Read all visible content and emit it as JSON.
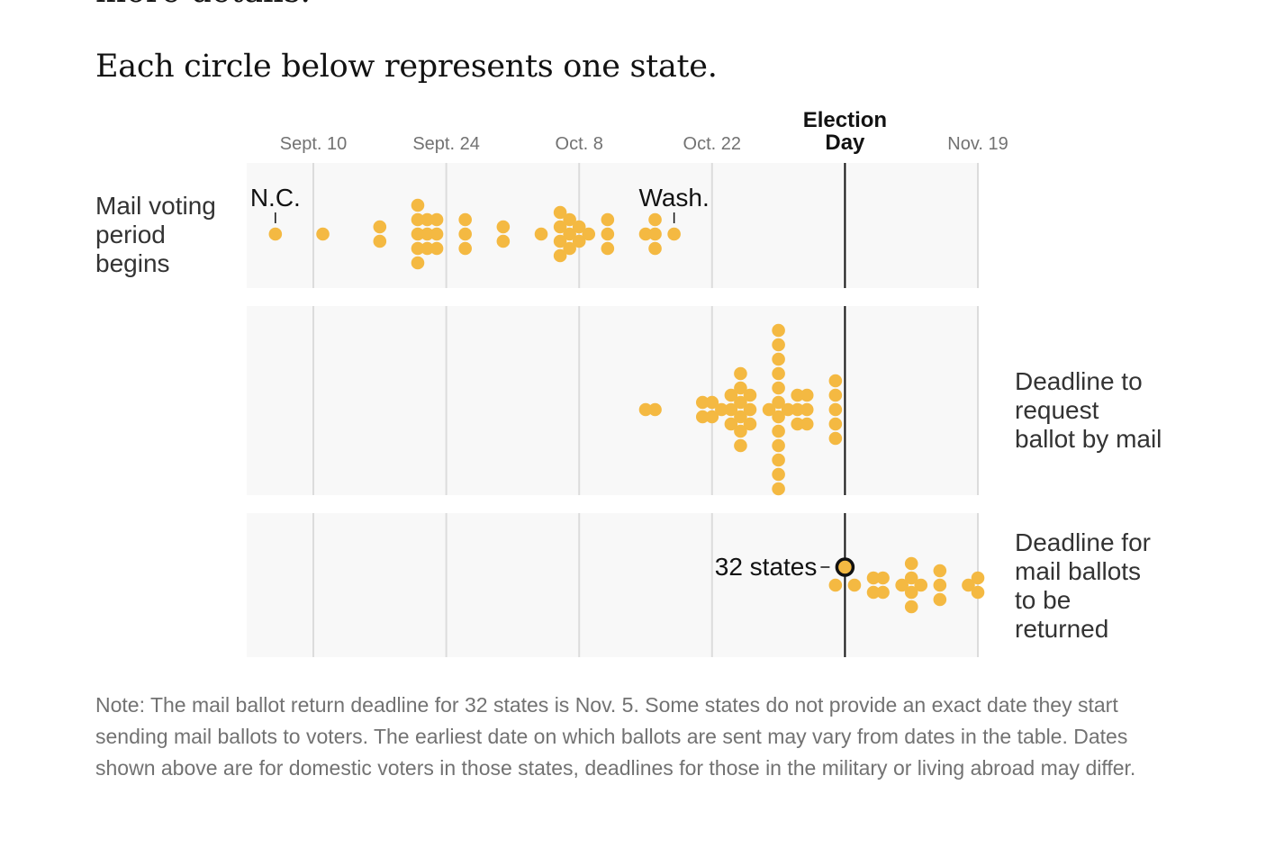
{
  "header": {
    "cut_text": "more details.",
    "intro": "Each circle below represents one state."
  },
  "chart_data": {
    "type": "scatter",
    "subtype": "beeswarm / dot plot",
    "x_axis": {
      "type": "date",
      "ticks": [
        {
          "date": "2024-09-10",
          "label": "Sept. 10"
        },
        {
          "date": "2024-09-24",
          "label": "Sept. 24"
        },
        {
          "date": "2024-10-08",
          "label": "Oct. 8"
        },
        {
          "date": "2024-10-22",
          "label": "Oct. 22"
        },
        {
          "date": "2024-11-05",
          "label": "Election Day",
          "emphasis": true
        },
        {
          "date": "2024-11-19",
          "label": "Nov. 19"
        }
      ],
      "range": [
        "2024-09-03",
        "2024-11-19"
      ]
    },
    "election_day": "2024-11-05",
    "rows": [
      {
        "label": "Mail voting period begins",
        "label_side": "left",
        "groups": [
          {
            "date": "2024-09-06",
            "count": 1
          },
          {
            "date": "2024-09-11",
            "count": 1
          },
          {
            "date": "2024-09-17",
            "count": 2
          },
          {
            "date": "2024-09-21",
            "count": 5
          },
          {
            "date": "2024-09-22",
            "count": 3
          },
          {
            "date": "2024-09-23",
            "count": 3
          },
          {
            "date": "2024-09-26",
            "count": 3
          },
          {
            "date": "2024-09-30",
            "count": 2
          },
          {
            "date": "2024-10-04",
            "count": 1
          },
          {
            "date": "2024-10-06",
            "count": 4
          },
          {
            "date": "2024-10-07",
            "count": 3
          },
          {
            "date": "2024-10-08",
            "count": 2
          },
          {
            "date": "2024-10-09",
            "count": 1
          },
          {
            "date": "2024-10-11",
            "count": 3
          },
          {
            "date": "2024-10-15",
            "count": 1
          },
          {
            "date": "2024-10-16",
            "count": 3
          },
          {
            "date": "2024-10-18",
            "count": 1
          }
        ],
        "annotations": [
          {
            "text": "N.C.",
            "date": "2024-09-06"
          },
          {
            "text": "Wash.",
            "date": "2024-10-18"
          }
        ]
      },
      {
        "label": "Deadline to request ballot by mail",
        "label_side": "right",
        "groups": [
          {
            "date": "2024-10-15",
            "count": 1
          },
          {
            "date": "2024-10-16",
            "count": 1
          },
          {
            "date": "2024-10-21",
            "count": 2
          },
          {
            "date": "2024-10-22",
            "count": 2
          },
          {
            "date": "2024-10-23",
            "count": 1
          },
          {
            "date": "2024-10-24",
            "count": 3
          },
          {
            "date": "2024-10-25",
            "count": 6
          },
          {
            "date": "2024-10-26",
            "count": 3
          },
          {
            "date": "2024-10-28",
            "count": 1
          },
          {
            "date": "2024-10-29",
            "count": 12
          },
          {
            "date": "2024-10-30",
            "count": 1
          },
          {
            "date": "2024-10-31",
            "count": 3
          },
          {
            "date": "2024-11-01",
            "count": 3
          },
          {
            "date": "2024-11-04",
            "count": 5
          }
        ]
      },
      {
        "label": "Deadline for mail ballots to be returned",
        "label_side": "right",
        "groups": [
          {
            "date": "2024-11-04",
            "count": 1
          },
          {
            "date": "2024-11-05",
            "count": 32,
            "single_marker": true,
            "annotation": "32 states"
          },
          {
            "date": "2024-11-06",
            "count": 1
          },
          {
            "date": "2024-11-08",
            "count": 2
          },
          {
            "date": "2024-11-09",
            "count": 2
          },
          {
            "date": "2024-11-11",
            "count": 1
          },
          {
            "date": "2024-11-12",
            "count": 4
          },
          {
            "date": "2024-11-13",
            "count": 1
          },
          {
            "date": "2024-11-15",
            "count": 3
          },
          {
            "date": "2024-11-18",
            "count": 1
          },
          {
            "date": "2024-11-19",
            "count": 2
          }
        ]
      }
    ],
    "colors": {
      "dot": "#f4b942",
      "panel": "#f8f8f8",
      "grid": "#dcdcdc",
      "election_line": "#121212",
      "tick_label": "#727272"
    }
  },
  "note": "Note: The mail ballot return deadline for 32 states is Nov. 5. Some states do not provide an exact date they start sending mail ballots to voters. The earliest date on which ballots are sent may vary from dates in the table. Dates shown above are for domestic voters in those states, deadlines for those in the military or living abroad may differ."
}
